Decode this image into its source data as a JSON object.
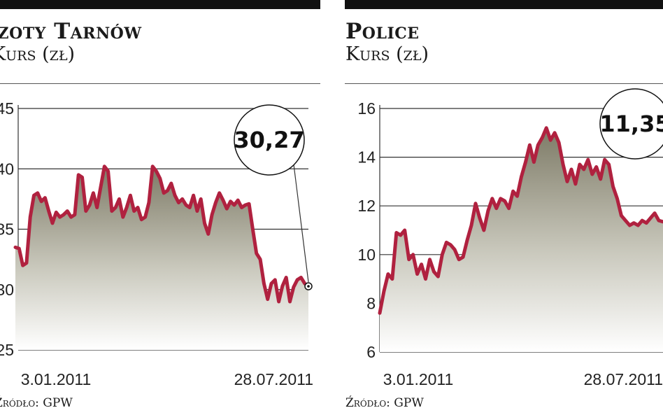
{
  "charts": [
    {
      "title": "Azoty Tarnów",
      "subtitle": "Kurs (zł)",
      "source": "Źródło: GPW",
      "x_labels": [
        "3.01.2011",
        "28.07.2011"
      ],
      "highlight": "30,27"
    },
    {
      "title": "Police",
      "subtitle": "Kurs (zł)",
      "source": "Źródło: GPW",
      "x_labels": [
        "3.01.2011",
        "28.07.2011"
      ],
      "highlight": "11,35"
    }
  ],
  "chart_data": [
    {
      "type": "area",
      "title": "Azoty Tarnów",
      "ylabel": "Kurs (zł)",
      "ylim": [
        25,
        45
      ],
      "yticks": [
        25,
        30,
        35,
        40,
        45
      ],
      "x_labels": [
        "3.01.2011",
        "28.07.2011"
      ],
      "grid": true,
      "line_color": "#b0213f",
      "annotation": "30,27",
      "values": [
        33.5,
        33.4,
        32.0,
        32.2,
        36.0,
        37.8,
        38.0,
        37.3,
        37.6,
        36.5,
        35.5,
        36.4,
        36.0,
        36.2,
        36.5,
        36.0,
        36.2,
        39.5,
        39.3,
        36.5,
        37.0,
        38.0,
        36.8,
        38.5,
        40.2,
        39.8,
        36.5,
        36.8,
        37.5,
        36.0,
        36.8,
        37.8,
        36.5,
        36.8,
        35.8,
        36.0,
        37.2,
        40.2,
        39.8,
        39.2,
        38.0,
        38.2,
        38.8,
        37.8,
        37.2,
        37.5,
        37.0,
        36.8,
        37.8,
        36.5,
        37.5,
        35.5,
        34.6,
        36.2,
        37.2,
        38.0,
        37.4,
        36.7,
        37.3,
        37.0,
        37.4,
        36.8,
        37.0,
        37.1,
        35.0,
        33.0,
        32.5,
        30.5,
        29.2,
        30.5,
        30.8,
        29.0,
        30.3,
        31.0,
        29.0,
        30.2,
        30.8,
        31.0,
        30.5,
        30.27
      ],
      "last_value": 30.27
    },
    {
      "type": "area",
      "title": "Police",
      "ylabel": "Kurs (zł)",
      "ylim": [
        6,
        16
      ],
      "yticks": [
        6,
        8,
        10,
        12,
        14,
        16
      ],
      "x_labels": [
        "3.01.2011",
        "28.07.2011"
      ],
      "grid": true,
      "line_color": "#b0213f",
      "annotation": "11,35",
      "values": [
        7.6,
        8.5,
        9.2,
        9.0,
        10.9,
        10.8,
        11.0,
        9.8,
        10.0,
        9.2,
        9.6,
        9.0,
        9.8,
        9.3,
        9.1,
        10.0,
        10.5,
        10.4,
        10.2,
        9.8,
        9.9,
        10.6,
        11.2,
        12.1,
        11.5,
        11.0,
        11.8,
        12.3,
        11.9,
        12.3,
        12.2,
        11.9,
        12.6,
        12.4,
        13.2,
        13.8,
        14.5,
        13.8,
        14.5,
        14.8,
        15.2,
        14.7,
        15.0,
        14.6,
        13.7,
        13.0,
        13.5,
        12.9,
        13.7,
        13.5,
        13.9,
        13.3,
        13.6,
        13.1,
        13.9,
        13.7,
        12.8,
        12.3,
        11.6,
        11.4,
        11.2,
        11.3,
        11.2,
        11.4,
        11.3,
        11.5,
        11.7,
        11.4,
        11.35
      ],
      "last_value": 11.35
    }
  ]
}
